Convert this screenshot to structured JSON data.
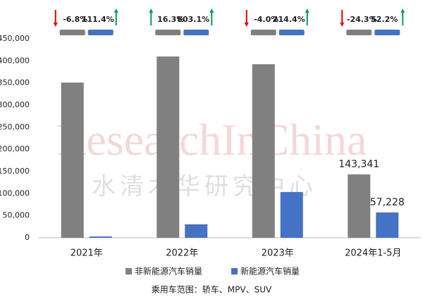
{
  "chart_data": {
    "type": "bar",
    "categories": [
      "2021年",
      "2022年",
      "2023年",
      "2024年1-5月"
    ],
    "series": [
      {
        "name": "非新能源汽车销量",
        "color": "#808080",
        "values": [
          351000,
          410000,
          392500,
          143341
        ],
        "value_labels": [
          null,
          null,
          null,
          "143,341"
        ]
      },
      {
        "name": "新能源汽车销量",
        "color": "#4472c4",
        "values": [
          3000,
          30500,
          103500,
          57228
        ],
        "value_labels": [
          null,
          null,
          null,
          "57,228"
        ]
      }
    ],
    "growth": [
      [
        "-6.8%",
        "111.4%"
      ],
      [
        "16.3%",
        "803.1%"
      ],
      [
        "-4.0%",
        "214.4%"
      ],
      [
        "-24.3%",
        "52.2%"
      ]
    ],
    "up_color": "#00a050",
    "down_color": "#e00000",
    "ylim": [
      0,
      450000
    ],
    "yticks": [
      0,
      {
        "value": 50000,
        "label": "50,000"
      },
      {
        "value": 100000,
        "label": "100,000"
      },
      {
        "value": 150000,
        "label": "150,000"
      },
      {
        "value": 200000,
        "label": "200,000"
      },
      {
        "value": 250000,
        "label": "250,000"
      },
      {
        "value": 300000,
        "label": "300,000"
      },
      {
        "value": 350000,
        "label": "350,000"
      },
      {
        "value": 400000,
        "label": "400,000"
      },
      {
        "value": 450000,
        "label": "450,000"
      }
    ],
    "grid": false,
    "watermark": [
      "ResearchInChina",
      "水清木华研究中心"
    ],
    "footnote": "乘用车范围：轿车、MPV、SUV"
  }
}
